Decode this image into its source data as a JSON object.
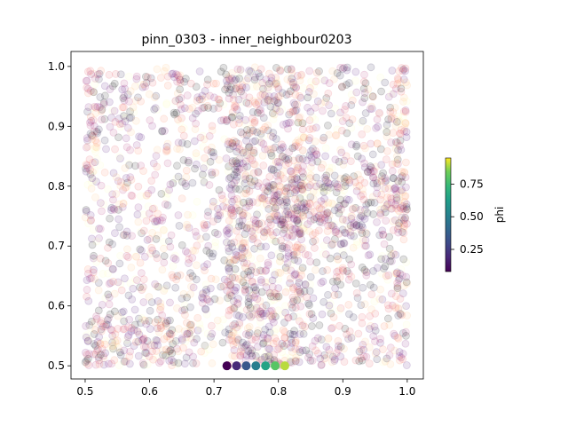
{
  "chart_data": {
    "type": "scatter",
    "title": "pinn_0303 - inner_neighbour0203",
    "xlabel": "",
    "ylabel": "",
    "xlim": [
      0.478,
      1.025
    ],
    "ylim": [
      0.478,
      1.025
    ],
    "xticks": [
      "0.5",
      "0.6",
      "0.7",
      "0.8",
      "0.9",
      "1.0"
    ],
    "yticks": [
      "0.5",
      "0.6",
      "0.7",
      "0.8",
      "0.9",
      "1.0"
    ],
    "grid": false,
    "background_scatter": {
      "description_colormap": "magma",
      "alpha": 0.12,
      "dense_regions": [
        {
          "x": [
            0.5,
            0.66
          ],
          "y": [
            0.5,
            0.58
          ]
        },
        {
          "x": [
            0.72,
            0.84
          ],
          "y": [
            0.5,
            1.0
          ]
        },
        {
          "x": [
            0.78,
            1.0
          ],
          "y": [
            0.72,
            0.82
          ]
        },
        {
          "x": [
            0.5,
            0.52
          ],
          "y": [
            0.8,
            1.0
          ]
        },
        {
          "x": [
            0.98,
            1.0
          ],
          "y": [
            0.5,
            1.0
          ]
        }
      ]
    },
    "highlight_points": [
      {
        "x": 0.72,
        "y": 0.5,
        "phi": 0.05
      },
      {
        "x": 0.735,
        "y": 0.5,
        "phi": 0.2
      },
      {
        "x": 0.75,
        "y": 0.5,
        "phi": 0.35
      },
      {
        "x": 0.765,
        "y": 0.5,
        "phi": 0.5
      },
      {
        "x": 0.78,
        "y": 0.5,
        "phi": 0.65
      },
      {
        "x": 0.795,
        "y": 0.5,
        "phi": 0.8
      },
      {
        "x": 0.81,
        "y": 0.5,
        "phi": 0.9
      }
    ],
    "colorbar": {
      "label": "phi",
      "colormap": "viridis",
      "range": [
        0.08,
        0.95
      ],
      "ticks": [
        {
          "value": 0.25,
          "label": "0.25"
        },
        {
          "value": 0.5,
          "label": "0.50"
        },
        {
          "value": 0.75,
          "label": "0.75"
        }
      ]
    }
  }
}
